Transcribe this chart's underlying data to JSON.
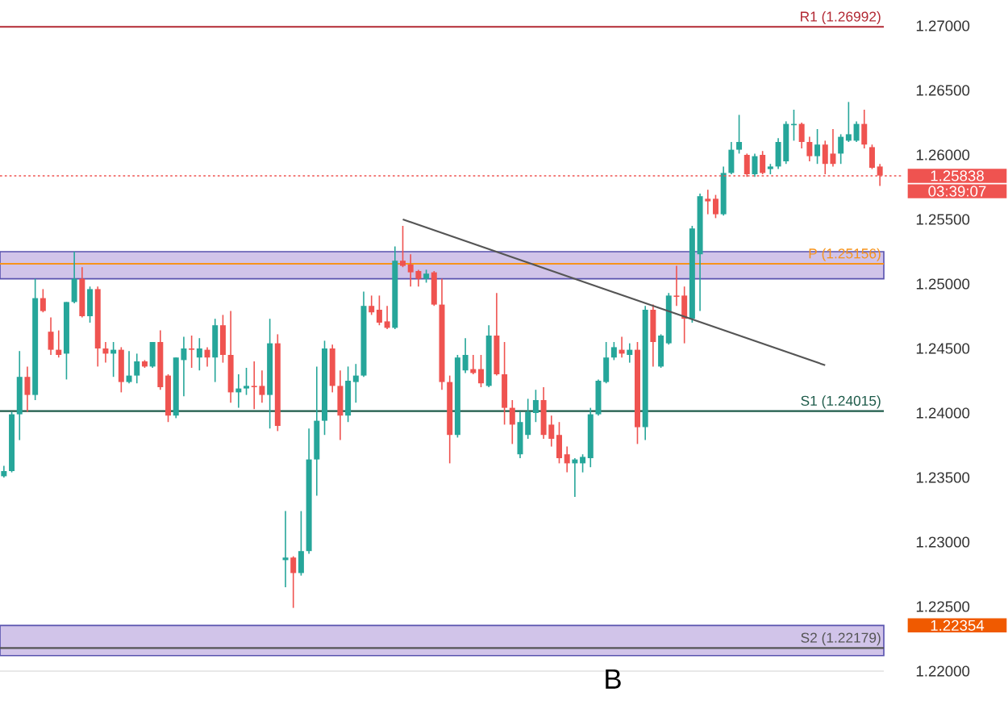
{
  "chart_data": {
    "type": "candlestick",
    "categories": [
      null,
      null,
      null,
      null,
      null,
      null,
      null,
      null,
      null,
      null,
      null,
      null,
      null,
      null,
      null,
      null,
      null,
      null,
      null,
      null,
      null,
      null,
      null,
      null,
      null,
      null,
      null,
      null,
      null,
      null,
      null,
      null,
      null,
      null,
      null,
      null,
      null,
      null,
      null,
      null,
      null,
      null,
      null,
      null,
      null,
      null,
      null,
      null,
      null,
      null,
      null,
      null,
      null,
      null,
      null,
      null,
      null,
      null,
      null,
      null,
      null,
      null,
      null,
      null,
      null,
      null,
      null,
      null,
      null,
      null,
      null,
      null,
      null,
      null,
      null,
      null,
      null,
      null,
      null,
      null,
      null,
      null,
      null,
      null,
      null,
      null,
      null,
      null,
      null,
      null,
      null,
      null,
      null,
      null,
      null,
      null,
      null,
      null,
      null,
      null,
      null,
      null,
      null,
      null,
      null,
      null,
      null,
      null,
      null,
      null,
      null,
      null,
      null
    ],
    "colors": [
      "#26a69a",
      "#26a69a",
      "#26a69a",
      "#ef5350",
      "#26a69a",
      "#ef5350",
      "#ef5350",
      "#ef5350",
      "#26a69a",
      "#26a69a",
      "#ef5350",
      "#26a69a",
      "#ef5350",
      "#ef5350",
      "#26a69a",
      "#ef5350",
      "#26a69a",
      "#26a69a",
      "#ef5350",
      "#26a69a",
      "#ef5350",
      "#ef5350",
      "#26a69a",
      "#26a69a",
      "#ef5350",
      "#26a69a",
      "#ef5350",
      "#26a69a",
      "#ef5350",
      "#ef5350",
      "#26a69a",
      "#26a69a",
      "#ef5350",
      "#ef5350",
      "#26a69a",
      "#ef5350",
      "#26a69a",
      "#ef5350",
      "#26a69a",
      "#26a69a",
      "#26a69a",
      "#26a69a",
      "#ef5350",
      "#ef5350",
      "#26a69a",
      "#26a69a",
      "#26a69a",
      "#ef5350",
      "#ef5350",
      "#ef5350",
      "#26a69a",
      "#ef5350",
      "#ef5350",
      "#ef5350",
      "#26a69a",
      "#ef5350",
      "#ef5350",
      "#ef5350",
      "#26a69a",
      "#26a69a",
      "#ef5350",
      "#ef5350",
      "#26a69a",
      "#ef5350",
      "#ef5350",
      "#ef5350",
      "#26a69a",
      "#26a69a",
      "#26a69a",
      "#ef5350",
      "#ef5350",
      "#ef5350",
      "#ef5350",
      "#26a69a",
      "#26a69a",
      "#26a69a",
      "#26a69a",
      "#26a69a",
      "#26a69a",
      "#ef5350",
      "#26a69a",
      "#ef5350",
      "#26a69a",
      "#ef5350",
      "#26a69a",
      "#26a69a",
      "#ef5350",
      "#ef5350",
      "#26a69a",
      "#26a69a",
      "#ef5350",
      "#ef5350",
      "#26a69a",
      "#26a69a",
      "#26a69a",
      "#ef5350",
      "#26a69a",
      "#ef5350",
      "#26a69a",
      "#26a69a",
      "#26a69a",
      "#26a69a",
      "#ef5350",
      "#ef5350",
      "#26a69a",
      "#ef5350",
      "#ef5350",
      "#26a69a",
      "#26a69a",
      "#26a69a",
      "#ef5350",
      "#ef5350",
      "#ef5350"
    ],
    "ohlc": [
      [
        1.2351,
        1.2359,
        1.235,
        1.2355
      ],
      [
        1.2355,
        1.2401,
        1.2354,
        1.2399
      ],
      [
        1.2399,
        1.2448,
        1.2379,
        1.2428
      ],
      [
        1.2428,
        1.2436,
        1.2401,
        1.2414
      ],
      [
        1.2414,
        1.2504,
        1.241,
        1.2489
      ],
      [
        1.2489,
        1.2496,
        1.2478,
        1.2479
      ],
      [
        1.2463,
        1.2474,
        1.2445,
        1.2449
      ],
      [
        1.2449,
        1.2464,
        1.2443,
        1.2445
      ],
      [
        1.2446,
        1.2486,
        1.2426,
        1.2486
      ],
      [
        1.2486,
        1.2525,
        1.2485,
        1.2504
      ],
      [
        1.2504,
        1.2513,
        1.2474,
        1.2475
      ],
      [
        1.2475,
        1.2498,
        1.247,
        1.2496
      ],
      [
        1.2496,
        1.2498,
        1.2436,
        1.245
      ],
      [
        1.245,
        1.2455,
        1.2439,
        1.2446
      ],
      [
        1.2446,
        1.2455,
        1.2428,
        1.2449
      ],
      [
        1.2449,
        1.2451,
        1.2416,
        1.2424
      ],
      [
        1.2424,
        1.2448,
        1.2423,
        1.2429
      ],
      [
        1.2429,
        1.2446,
        1.2423,
        1.244
      ],
      [
        1.244,
        1.2441,
        1.2435,
        1.2436
      ],
      [
        1.2436,
        1.2455,
        1.2435,
        1.2455
      ],
      [
        1.2455,
        1.2464,
        1.2418,
        1.242
      ],
      [
        1.2429,
        1.243,
        1.2393,
        1.2398
      ],
      [
        1.2398,
        1.2443,
        1.2396,
        1.2443
      ],
      [
        1.2441,
        1.2459,
        1.2413,
        1.245
      ],
      [
        1.245,
        1.246,
        1.2435,
        1.2449
      ],
      [
        1.2443,
        1.2458,
        1.2433,
        1.245
      ],
      [
        1.2449,
        1.2451,
        1.2436,
        1.2443
      ],
      [
        1.2443,
        1.2473,
        1.2424,
        1.2468
      ],
      [
        1.2468,
        1.2476,
        1.2439,
        1.2445
      ],
      [
        1.2445,
        1.2479,
        1.2408,
        1.2416
      ],
      [
        1.2416,
        1.243,
        1.2404,
        1.2419
      ],
      [
        1.2419,
        1.2435,
        1.2414,
        1.2421
      ],
      [
        1.2421,
        1.244,
        1.2403,
        1.242
      ],
      [
        1.2421,
        1.2433,
        1.2408,
        1.2414
      ],
      [
        1.2414,
        1.2473,
        1.2388,
        1.2454
      ],
      [
        1.2454,
        1.2461,
        1.2386,
        1.239
      ],
      [
        1.2286,
        1.2324,
        1.2265,
        1.2288
      ],
      [
        1.2288,
        1.2289,
        1.2249,
        1.2276
      ],
      [
        1.2276,
        1.2324,
        1.2274,
        1.2293
      ],
      [
        1.2293,
        1.2388,
        1.2291,
        1.2364
      ],
      [
        1.2364,
        1.2436,
        1.2336,
        1.2394
      ],
      [
        1.2394,
        1.2456,
        1.2383,
        1.245
      ],
      [
        1.245,
        1.2453,
        1.2416,
        1.2421
      ],
      [
        1.2421,
        1.2433,
        1.2379,
        1.2398
      ],
      [
        1.2398,
        1.2436,
        1.2393,
        1.2425
      ],
      [
        1.2424,
        1.2438,
        1.2408,
        1.2429
      ],
      [
        1.2429,
        1.2494,
        1.2428,
        1.2483
      ],
      [
        1.2483,
        1.2491,
        1.2476,
        1.2478
      ],
      [
        1.248,
        1.2491,
        1.2468,
        1.247
      ],
      [
        1.2471,
        1.2483,
        1.2465,
        1.2466
      ],
      [
        1.2466,
        1.2529,
        1.2465,
        1.2518
      ],
      [
        1.2518,
        1.2545,
        1.2513,
        1.2514
      ],
      [
        1.2515,
        1.2523,
        1.2498,
        1.2509
      ],
      [
        1.251,
        1.2511,
        1.2498,
        1.2504
      ],
      [
        1.2504,
        1.2511,
        1.2501,
        1.2508
      ],
      [
        1.2509,
        1.251,
        1.2483,
        1.2484
      ],
      [
        1.2484,
        1.2504,
        1.2418,
        1.2424
      ],
      [
        1.2424,
        1.2429,
        1.2361,
        1.2383
      ],
      [
        1.2383,
        1.2445,
        1.2381,
        1.2443
      ],
      [
        1.2433,
        1.2458,
        1.2431,
        1.2445
      ],
      [
        1.2434,
        1.2445,
        1.243,
        1.2431
      ],
      [
        1.2434,
        1.2445,
        1.242,
        1.2423
      ],
      [
        1.2421,
        1.2468,
        1.242,
        1.246
      ],
      [
        1.246,
        1.2493,
        1.2429,
        1.243
      ],
      [
        1.243,
        1.2455,
        1.2391,
        1.2404
      ],
      [
        1.2404,
        1.241,
        1.2376,
        1.2391
      ],
      [
        1.2368,
        1.2401,
        1.2365,
        1.2393
      ],
      [
        1.2383,
        1.2411,
        1.238,
        1.2401
      ],
      [
        1.24,
        1.2418,
        1.2393,
        1.241
      ],
      [
        1.241,
        1.242,
        1.238,
        1.2383
      ],
      [
        1.2391,
        1.2398,
        1.2374,
        1.238
      ],
      [
        1.2383,
        1.2393,
        1.2361,
        1.2365
      ],
      [
        1.2368,
        1.2374,
        1.2354,
        1.2361
      ],
      [
        1.2361,
        1.2365,
        1.2335,
        1.2364
      ],
      [
        1.2361,
        1.2368,
        1.2354,
        1.2366
      ],
      [
        1.2365,
        1.2404,
        1.2358,
        1.2399
      ],
      [
        1.2399,
        1.2426,
        1.2398,
        1.2425
      ],
      [
        1.2424,
        1.2455,
        1.2423,
        1.2443
      ],
      [
        1.2443,
        1.2455,
        1.2441,
        1.2451
      ],
      [
        1.2449,
        1.2459,
        1.2443,
        1.2446
      ],
      [
        1.2445,
        1.2454,
        1.2439,
        1.2449
      ],
      [
        1.2449,
        1.2455,
        1.2376,
        1.2389
      ],
      [
        1.2389,
        1.2483,
        1.2379,
        1.248
      ],
      [
        1.248,
        1.2484,
        1.2436,
        1.2455
      ],
      [
        1.2436,
        1.2461,
        1.2435,
        1.246
      ],
      [
        1.2454,
        1.2493,
        1.2453,
        1.2491
      ],
      [
        1.2491,
        1.2514,
        1.2483,
        1.249
      ],
      [
        1.2491,
        1.2498,
        1.2454,
        1.2473
      ],
      [
        1.2473,
        1.2545,
        1.247,
        1.2543
      ],
      [
        1.2523,
        1.257,
        1.2479,
        1.2568
      ],
      [
        1.2566,
        1.2573,
        1.2554,
        1.2564
      ],
      [
        1.2566,
        1.2569,
        1.2551,
        1.2554
      ],
      [
        1.2554,
        1.2591,
        1.2553,
        1.2586
      ],
      [
        1.2586,
        1.261,
        1.2585,
        1.2604
      ],
      [
        1.2604,
        1.2631,
        1.2601,
        1.261
      ],
      [
        1.26,
        1.2601,
        1.2583,
        1.2585
      ],
      [
        1.2585,
        1.2601,
        1.2583,
        1.2599
      ],
      [
        1.26,
        1.2603,
        1.2585,
        1.2586
      ],
      [
        1.2589,
        1.2593,
        1.2585,
        1.2591
      ],
      [
        1.2591,
        1.2613,
        1.2589,
        1.261
      ],
      [
        1.2595,
        1.2626,
        1.2593,
        1.2624
      ],
      [
        1.2623,
        1.2635,
        1.2611,
        1.2624
      ],
      [
        1.2624,
        1.2625,
        1.2605,
        1.261
      ],
      [
        1.261,
        1.2614,
        1.2595,
        1.2599
      ],
      [
        1.2599,
        1.262,
        1.2593,
        1.2608
      ],
      [
        1.2608,
        1.2611,
        1.2585,
        1.2593
      ],
      [
        1.2601,
        1.262,
        1.2591,
        1.2593
      ],
      [
        1.2601,
        1.2616,
        1.2593,
        1.2614
      ],
      [
        1.2611,
        1.2641,
        1.261,
        1.2616
      ],
      [
        1.2611,
        1.2626,
        1.261,
        1.2624
      ],
      [
        1.2624,
        1.2635,
        1.2605,
        1.2608
      ],
      [
        1.2606,
        1.2608,
        1.2589,
        1.259
      ],
      [
        1.2591,
        1.2593,
        1.2576,
        1.2584
      ]
    ],
    "series": [
      {
        "type": "line",
        "values": [
          null,
          null,
          null,
          null,
          null,
          null,
          null,
          null,
          null,
          null,
          null,
          null,
          null,
          null,
          null,
          null,
          null,
          null,
          null,
          null,
          null,
          null,
          null,
          null,
          null,
          null,
          null,
          null,
          null,
          null,
          null,
          null,
          null,
          null,
          null,
          null,
          null,
          null,
          null,
          null,
          null,
          null,
          null,
          null,
          null,
          null,
          null,
          null,
          null,
          null,
          null,
          1.255,
          null,
          null,
          null,
          null,
          null,
          null,
          null,
          null,
          null,
          null,
          null,
          null,
          null,
          null,
          null,
          null,
          null,
          null,
          null,
          null,
          null,
          null,
          null,
          null,
          null,
          null,
          null,
          null,
          null,
          null,
          null,
          null,
          null,
          null,
          null,
          null,
          null,
          null,
          null,
          null,
          null,
          null,
          null,
          null,
          null,
          null,
          null,
          null,
          null,
          null,
          null,
          null,
          null,
          1.2437,
          null,
          null,
          null,
          null,
          null,
          null,
          null
        ],
        "color": "#555555"
      }
    ],
    "ylim": [
      1.22,
      1.27
    ],
    "yticks": [
      {
        "value": 1.22,
        "label": "1.22000"
      },
      {
        "value": 1.225,
        "label": "1.22500"
      },
      {
        "value": 1.23,
        "label": "1.23000"
      },
      {
        "value": 1.235,
        "label": "1.23500"
      },
      {
        "value": 1.24,
        "label": "1.24000"
      },
      {
        "value": 1.245,
        "label": "1.24500"
      },
      {
        "value": 1.25,
        "label": "1.25000"
      },
      {
        "value": 1.255,
        "label": "1.25500"
      },
      {
        "value": 1.26,
        "label": "1.26000"
      },
      {
        "value": 1.265,
        "label": "1.26500"
      },
      {
        "value": 1.27,
        "label": "1.27000"
      }
    ],
    "bands": [
      {
        "axis": "y",
        "from": 1.2504,
        "to": 1.2525,
        "color": "#d1c4e9"
      },
      {
        "axis": "y",
        "from": 1.2212,
        "to": 1.22354,
        "color": "#d1c4e9"
      }
    ],
    "ref_lines": [
      {
        "axis": "y",
        "value": 1.26992,
        "label": "R1 (1.26992)",
        "color": "#b22833",
        "line_style": "solid"
      },
      {
        "axis": "y",
        "value": 1.25156,
        "label": "P (1.25156)",
        "color": "#f7931a",
        "line_style": "solid"
      },
      {
        "axis": "y",
        "value": 1.24015,
        "label": "S1 (1.24015)",
        "color": "#1e5b4a",
        "line_style": "solid"
      },
      {
        "axis": "y",
        "value": 1.22179,
        "label": "S2 (1.22179)",
        "color": "#555555",
        "line_style": "solid"
      },
      {
        "axis": "y",
        "value": 1.25838,
        "label": "1.25838",
        "color": "#ef5350",
        "line_style": "dotted"
      }
    ],
    "annotations": [
      "03:39:07",
      "1.22354",
      "B"
    ]
  }
}
